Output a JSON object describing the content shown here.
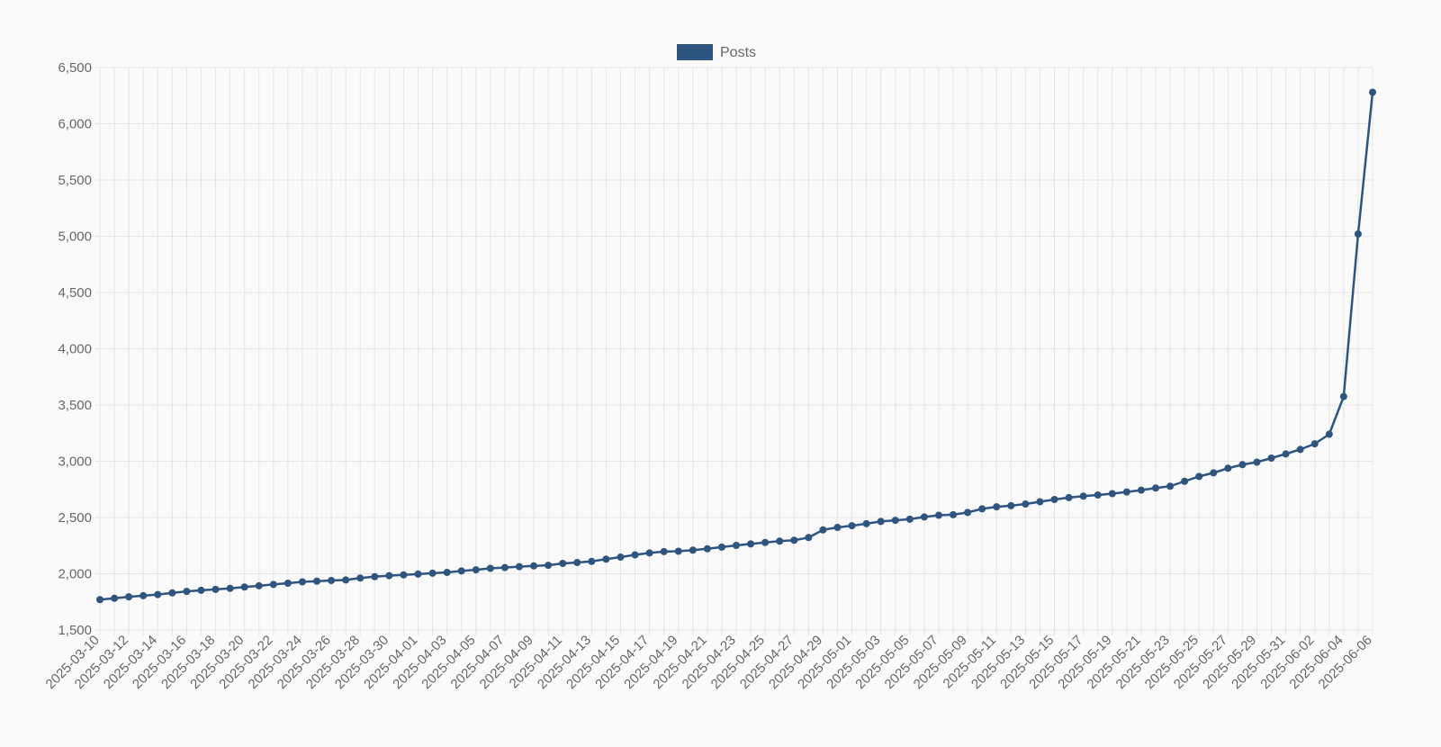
{
  "chart_data": {
    "type": "line",
    "series": [
      {
        "name": "Posts",
        "color": "#2e5580",
        "values": [
          1770,
          1782,
          1795,
          1805,
          1815,
          1830,
          1843,
          1853,
          1861,
          1870,
          1882,
          1893,
          1905,
          1916,
          1928,
          1934,
          1940,
          1945,
          1962,
          1974,
          1983,
          1990,
          1997,
          2005,
          2012,
          2025,
          2035,
          2048,
          2055,
          2063,
          2070,
          2075,
          2092,
          2100,
          2110,
          2130,
          2148,
          2168,
          2185,
          2197,
          2200,
          2210,
          2222,
          2237,
          2252,
          2265,
          2278,
          2290,
          2298,
          2322,
          2390,
          2412,
          2427,
          2445,
          2465,
          2475,
          2485,
          2505,
          2520,
          2525,
          2545,
          2577,
          2595,
          2605,
          2620,
          2640,
          2660,
          2677,
          2690,
          2700,
          2712,
          2727,
          2743,
          2762,
          2778,
          2822,
          2865,
          2897,
          2938,
          2970,
          2992,
          3028,
          3065,
          3105,
          3155,
          3240,
          3575,
          5020,
          6280
        ]
      }
    ],
    "x_start": "2025-03-10",
    "x_end": "2025-06-06",
    "x_tick_labels": [
      "2025-03-10",
      "2025-03-12",
      "2025-03-14",
      "2025-03-16",
      "2025-03-18",
      "2025-03-20",
      "2025-03-22",
      "2025-03-24",
      "2025-03-26",
      "2025-03-28",
      "2025-03-30",
      "2025-04-01",
      "2025-04-03",
      "2025-04-05",
      "2025-04-07",
      "2025-04-09",
      "2025-04-11",
      "2025-04-13",
      "2025-04-15",
      "2025-04-17",
      "2025-04-19",
      "2025-04-21",
      "2025-04-23",
      "2025-04-25",
      "2025-04-27",
      "2025-04-29",
      "2025-05-01",
      "2025-05-03",
      "2025-05-05",
      "2025-05-07",
      "2025-05-09",
      "2025-05-11",
      "2025-05-13",
      "2025-05-15",
      "2025-05-17",
      "2025-05-19",
      "2025-05-21",
      "2025-05-23",
      "2025-05-25",
      "2025-05-27",
      "2025-05-29",
      "2025-05-31",
      "2025-06-02",
      "2025-06-04",
      "2025-06-06"
    ],
    "y_ticks": [
      1500,
      2000,
      2500,
      3000,
      3500,
      4000,
      4500,
      5000,
      5500,
      6000,
      6500
    ],
    "y_tick_labels": [
      "1,500",
      "2,000",
      "2,500",
      "3,000",
      "3,500",
      "4,000",
      "4,500",
      "5,000",
      "5,500",
      "6,000",
      "6,500"
    ],
    "ylim": [
      1500,
      6500
    ],
    "grid": true,
    "legend_position": "top-center",
    "title": "",
    "xlabel": "",
    "ylabel": ""
  }
}
